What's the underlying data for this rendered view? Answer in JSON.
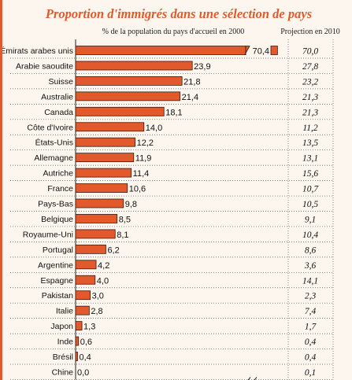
{
  "chart_data": {
    "type": "bar",
    "orientation": "horizontal",
    "title": "Proportion d'immigrés dans une sélection de pays",
    "subtitle": "% de la population du pays d'accueil en 2000",
    "projection_header": "Projection en 2010",
    "categories": [
      "Émirats arabes unis",
      "Arabie saoudite",
      "Suisse",
      "Australie",
      "Canada",
      "Côte d'Ivoire",
      "États-Unis",
      "Allemagne",
      "Autriche",
      "France",
      "Pays-Bas",
      "Belgique",
      "Royaume-Uni",
      "Portugal",
      "Argentine",
      "Espagne",
      "Pakistan",
      "Italie",
      "Japon",
      "Inde",
      "Brésil",
      "Chine"
    ],
    "series": [
      {
        "values": [
          70.4,
          23.9,
          21.8,
          21.4,
          18.1,
          14.0,
          12.2,
          11.9,
          11.4,
          10.6,
          9.8,
          8.5,
          8.1,
          6.2,
          4.2,
          4.0,
          3.0,
          2.8,
          1.3,
          0.6,
          0.4,
          0.0
        ],
        "labels": [
          "70,4",
          "23,9",
          "21,8",
          "21,4",
          "18,1",
          "14,0",
          "12,2",
          "11,9",
          "11,4",
          "10,6",
          "9,8",
          "8,5",
          "8,1",
          "6,2",
          "4,2",
          "4,0",
          "3,0",
          "2,8",
          "1,3",
          "0,6",
          "0,4",
          "0,0"
        ]
      }
    ],
    "projection_2010": [
      "70,0",
      "27,8",
      "23,2",
      "21,3",
      "21,3",
      "11,2",
      "13,5",
      "13,1",
      "15,6",
      "10,7",
      "10,5",
      "9,1",
      "10,4",
      "8,6",
      "3,6",
      "14,1",
      "2,3",
      "7,4",
      "1,7",
      "0,4",
      "0,4",
      "0,1"
    ],
    "xticks": [
      "0",
      "10",
      "20",
      "30",
      "70"
    ],
    "xlim": [
      0,
      70
    ],
    "axis_break": true,
    "colors": {
      "bar": "#e2592b",
      "title": "#e2592b"
    }
  }
}
